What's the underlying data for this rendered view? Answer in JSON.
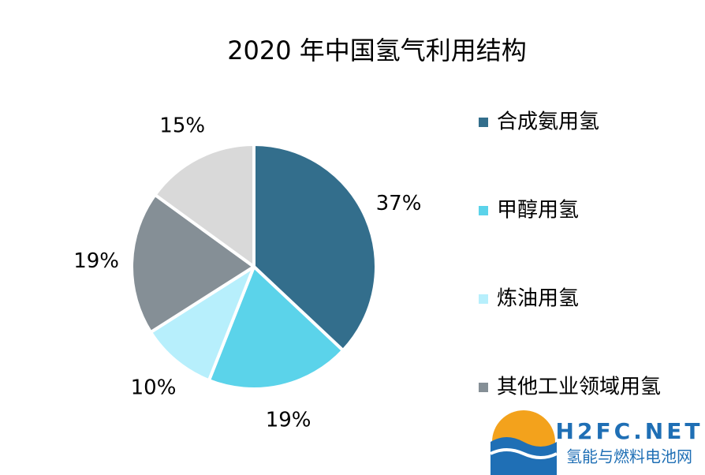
{
  "chart_data": {
    "type": "pie",
    "title": "2020 年中国氢气利用结构",
    "categories": [
      "合成氨用氢",
      "甲醇用氢",
      "炼油用氢",
      "其他工业领域用氢",
      null
    ],
    "values": [
      37,
      19,
      10,
      19,
      15
    ],
    "value_labels": [
      "37%",
      "19%",
      "10%",
      "19%",
      "15%"
    ],
    "colors": [
      "#336e8c",
      "#5bd3ea",
      "#b7effc",
      "#858f96",
      "#d9d9d9"
    ],
    "legend": "right"
  },
  "watermark": {
    "name": "H2FC.NET",
    "subtitle": "氢能与燃料电池网"
  }
}
